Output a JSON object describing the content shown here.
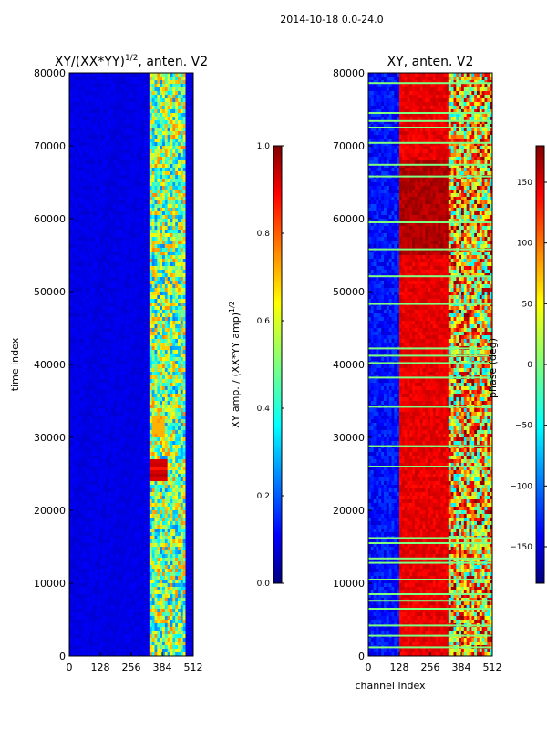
{
  "figure": {
    "title": "2014-10-18 0.0-24.0"
  },
  "chart_data": [
    {
      "type": "heatmap",
      "title": "XY/(XX*YY)",
      "title_sup": "1/2",
      "title_suffix": ", anten. V2",
      "xlabel": "",
      "ylabel": "time index",
      "xticks": [
        0,
        128,
        256,
        384,
        512
      ],
      "yticks": [
        0,
        10000,
        20000,
        30000,
        40000,
        50000,
        60000,
        70000,
        80000
      ],
      "xlim": [
        0,
        512
      ],
      "ylim": [
        0,
        80000
      ],
      "colormap": "jet",
      "active_channel_range": [
        330,
        480
      ],
      "colorbar": {
        "label": "XY amp. / (XX*YY amp)",
        "label_sup": "1/2",
        "range": [
          0.0,
          1.0
        ],
        "ticks": [
          "0.0",
          "0.2",
          "0.4",
          "0.6",
          "0.8",
          "1.0"
        ]
      }
    },
    {
      "type": "heatmap",
      "title": "XY, anten. V2",
      "xlabel": "channel index",
      "ylabel": "",
      "xticks": [
        0,
        128,
        256,
        384,
        512
      ],
      "yticks": [
        0,
        10000,
        20000,
        30000,
        40000,
        50000,
        60000,
        70000,
        80000
      ],
      "xlim": [
        0,
        512
      ],
      "ylim": [
        0,
        80000
      ],
      "colormap": "jet",
      "colorbar": {
        "label": "phase (deg)",
        "range": [
          -180,
          180
        ],
        "ticks": [
          "150",
          "100",
          "50",
          "0",
          "−50",
          "−100",
          "−150"
        ]
      },
      "flagged_rows": [
        1200,
        2800,
        4200,
        6500,
        7600,
        8500,
        10500,
        12800,
        13400,
        15500,
        16200,
        26000,
        28800,
        34200,
        38200,
        40200,
        41200,
        42200,
        48300,
        52100,
        55800,
        59500,
        65800,
        67400,
        70400,
        72500,
        73400,
        74500,
        78600
      ]
    }
  ]
}
